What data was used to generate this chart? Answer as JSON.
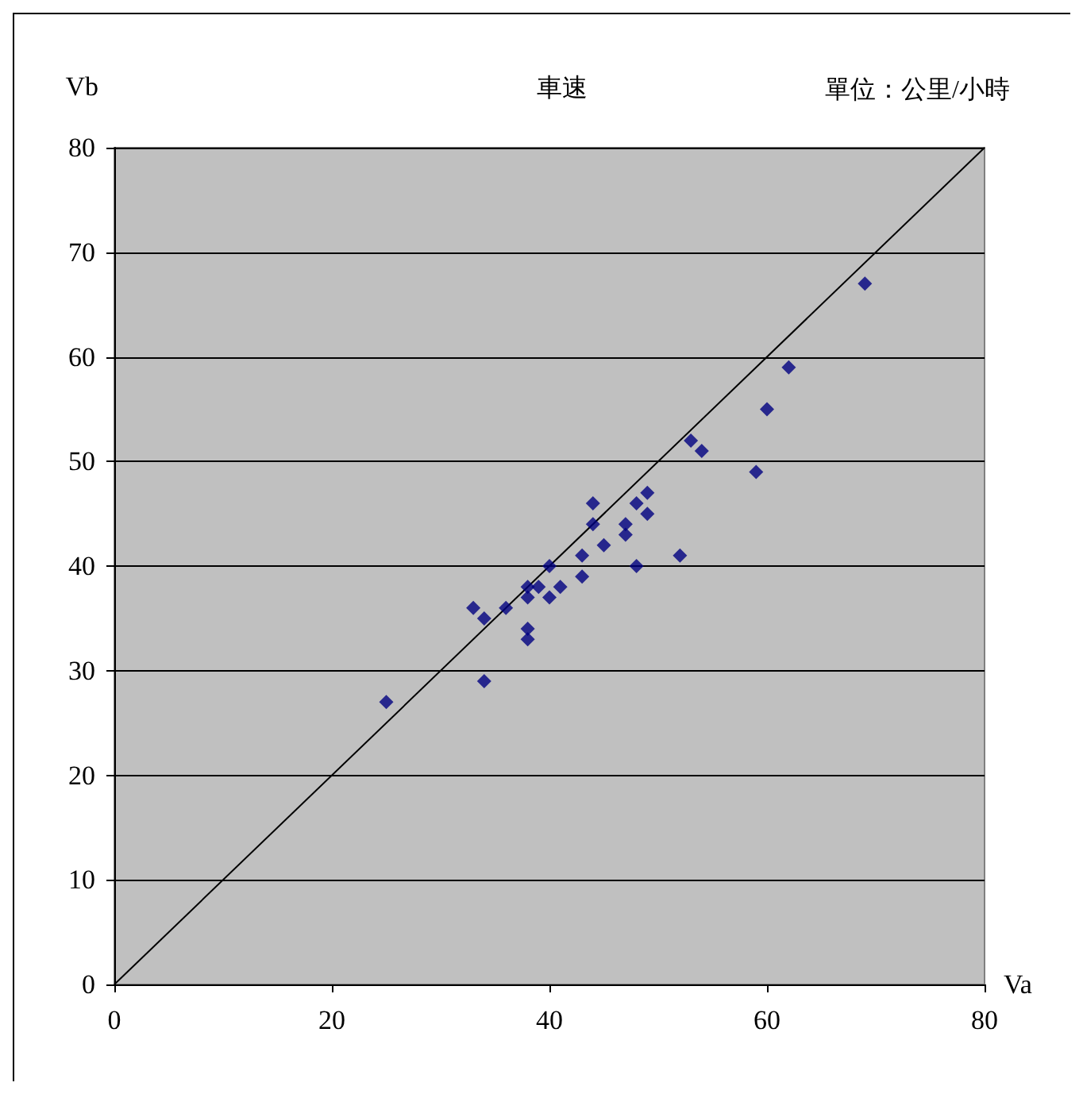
{
  "chart_data": {
    "type": "scatter",
    "title": "車速",
    "xlabel": "Va",
    "ylabel": "Vb",
    "annotations": [
      "單位：公里/小時"
    ],
    "xlim": [
      0,
      80
    ],
    "ylim": [
      0,
      80
    ],
    "xticks": [
      0,
      20,
      40,
      60,
      80
    ],
    "yticks": [
      0,
      10,
      20,
      30,
      40,
      50,
      60,
      70,
      80
    ],
    "grid": "y",
    "series": [
      {
        "marker": "diamond",
        "color": "#000080",
        "x": [
          25,
          33,
          34,
          34,
          36,
          38,
          38,
          38,
          38,
          39,
          40,
          40,
          41,
          43,
          43,
          44,
          44,
          45,
          47,
          47,
          48,
          48,
          49,
          49,
          52,
          53,
          54,
          59,
          60,
          62,
          69
        ],
        "values": [
          27,
          36,
          35,
          29,
          36,
          38,
          37,
          34,
          33,
          38,
          37,
          40,
          38,
          41,
          39,
          46,
          44,
          42,
          44,
          43,
          46,
          40,
          47,
          45,
          41,
          52,
          51,
          49,
          55,
          59,
          67
        ]
      },
      {
        "type": "line",
        "marker": "none",
        "color": "#000000",
        "x": [
          0,
          80
        ],
        "values": [
          0,
          80
        ]
      }
    ]
  }
}
